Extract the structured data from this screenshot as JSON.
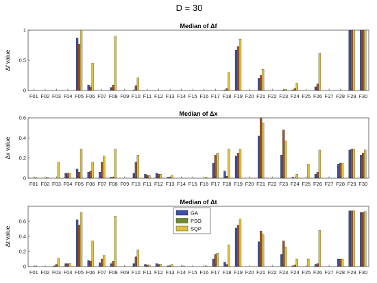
{
  "figure": {
    "suptitle": "D = 30"
  },
  "colors": {
    "GA": "#3f4fa8",
    "PSO": "#a7531f",
    "SQP": "#ddc341",
    "bar_edge": "#1a1a1a"
  },
  "colors_ga_alt": "#6f8a2e",
  "chart_data": [
    {
      "type": "bar",
      "title": "Median of Δf",
      "ylabel": "Δf value",
      "ylim": [
        0,
        1
      ],
      "yticks": [
        0,
        0.5,
        1
      ],
      "categories": [
        "F01",
        "F02",
        "F03",
        "F04",
        "F05",
        "F06",
        "F07",
        "F08",
        "F09",
        "F10",
        "F11",
        "F12",
        "F13",
        "F14",
        "F15",
        "F16",
        "F17",
        "F18",
        "F19",
        "F20",
        "F21",
        "F22",
        "F23",
        "F24",
        "F25",
        "F26",
        "F27",
        "F28",
        "F29",
        "F30"
      ],
      "series": [
        {
          "name": "GA",
          "values": [
            0,
            0,
            0,
            0,
            0.87,
            0.09,
            0,
            0.05,
            0,
            0.01,
            0,
            0,
            0,
            0,
            0,
            0,
            0,
            0.01,
            0.67,
            0,
            0.2,
            0,
            0,
            0.01,
            0,
            0.06,
            0,
            0,
            1,
            1
          ]
        },
        {
          "name": "PSO",
          "values": [
            0,
            0,
            0,
            0,
            0.77,
            0.06,
            0,
            0.09,
            0,
            0.08,
            0,
            0,
            0,
            0,
            0,
            0,
            0,
            0.03,
            0.73,
            0,
            0.25,
            0,
            0.01,
            0.03,
            0,
            0.11,
            0,
            0,
            1,
            1
          ]
        },
        {
          "name": "SQP",
          "values": [
            0,
            0,
            0,
            0,
            1,
            0.45,
            0,
            0.9,
            0,
            0.21,
            0,
            0,
            0,
            0,
            0,
            0,
            0,
            0.3,
            0.85,
            0,
            0.35,
            0,
            0.02,
            0.12,
            0,
            0.62,
            0,
            0,
            1,
            1
          ]
        }
      ]
    },
    {
      "type": "bar",
      "title": "Median of Δx",
      "ylabel": "Δx value",
      "ylim": [
        0,
        0.6
      ],
      "yticks": [
        0,
        0.2,
        0.4,
        0.6
      ],
      "categories": [
        "F01",
        "F02",
        "F03",
        "F04",
        "F05",
        "F06",
        "F07",
        "F08",
        "F09",
        "F10",
        "F11",
        "F12",
        "F13",
        "F14",
        "F15",
        "F16",
        "F17",
        "F18",
        "F19",
        "F20",
        "F21",
        "F22",
        "F23",
        "F24",
        "F25",
        "F26",
        "F27",
        "F28",
        "F29",
        "F30"
      ],
      "series": [
        {
          "name": "GA",
          "values": [
            0,
            0,
            0,
            0.05,
            0.09,
            0.06,
            0.06,
            0.01,
            0,
            0.05,
            0.04,
            0.05,
            0.01,
            0,
            0,
            0,
            0.15,
            0.07,
            0.22,
            0,
            0.42,
            0,
            0.23,
            0.01,
            0,
            0.04,
            0,
            0.14,
            0.28,
            0.23
          ]
        },
        {
          "name": "PSO",
          "values": [
            0,
            0,
            0,
            0.05,
            0.06,
            0.07,
            0.16,
            0.01,
            0,
            0.16,
            0.03,
            0.04,
            0.01,
            0,
            0,
            0,
            0.23,
            0.02,
            0.25,
            0,
            0.6,
            0,
            0.48,
            0,
            0,
            0.06,
            0,
            0.15,
            0.29,
            0.25
          ]
        },
        {
          "name": "SQP",
          "values": [
            0.01,
            0.01,
            0.16,
            0.05,
            0.29,
            0.16,
            0.22,
            0.29,
            0,
            0.23,
            0.03,
            0.04,
            0.03,
            0,
            0,
            0.01,
            0.25,
            0.29,
            0.29,
            0,
            0.55,
            0,
            0.37,
            0.04,
            0.14,
            0.28,
            0,
            0.15,
            0.29,
            0.28
          ]
        }
      ]
    },
    {
      "type": "bar",
      "title": "Median of Δt",
      "ylabel": "Δt value",
      "ylim": [
        0,
        0.8
      ],
      "yticks": [
        0,
        0.2,
        0.4,
        0.6
      ],
      "legend": {
        "position": "center-top"
      },
      "categories": [
        "F01",
        "F02",
        "F03",
        "F04",
        "F05",
        "F06",
        "F07",
        "F08",
        "F09",
        "F10",
        "F11",
        "F12",
        "F13",
        "F14",
        "F15",
        "F16",
        "F17",
        "F18",
        "F19",
        "F20",
        "F21",
        "F22",
        "F23",
        "F24",
        "F25",
        "F26",
        "F27",
        "F28",
        "F29",
        "F30"
      ],
      "series": [
        {
          "name": "GA",
          "values": [
            0,
            0,
            0.01,
            0.04,
            0.62,
            0.08,
            0.05,
            0.04,
            0,
            0.04,
            0.03,
            0.04,
            0.01,
            0,
            0,
            0,
            0.1,
            0.06,
            0.51,
            0,
            0.33,
            0,
            0.16,
            0.01,
            0,
            0.03,
            0,
            0.1,
            0.74,
            0.72
          ]
        },
        {
          "name": "PSO",
          "values": [
            0,
            0,
            0.03,
            0.04,
            0.55,
            0.07,
            0.1,
            0.07,
            0,
            0.13,
            0.02,
            0.03,
            0.01,
            0,
            0,
            0,
            0.16,
            0.03,
            0.55,
            0,
            0.47,
            0,
            0.34,
            0.02,
            0,
            0.04,
            0,
            0.1,
            0.74,
            0.72
          ]
        },
        {
          "name": "SQP",
          "values": [
            0.01,
            0,
            0.11,
            0.04,
            0.72,
            0.34,
            0.15,
            0.67,
            0,
            0.22,
            0.02,
            0.03,
            0.03,
            0.01,
            0,
            0.01,
            0.18,
            0.29,
            0.63,
            0,
            0.43,
            0,
            0.26,
            0.1,
            0.1,
            0.48,
            0,
            0.1,
            0.74,
            0.73
          ]
        }
      ]
    }
  ]
}
